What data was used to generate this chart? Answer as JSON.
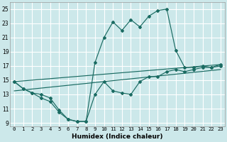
{
  "bg_color": "#cce8ea",
  "grid_color": "#ffffff",
  "line_color": "#1a6b62",
  "xlabel": "Humidex (Indice chaleur)",
  "ylim": [
    8.5,
    26
  ],
  "xlim": [
    -0.5,
    23.5
  ],
  "yticks": [
    9,
    11,
    13,
    15,
    17,
    19,
    21,
    23,
    25
  ],
  "xticks": [
    0,
    1,
    2,
    3,
    4,
    5,
    6,
    7,
    8,
    9,
    10,
    11,
    12,
    13,
    14,
    15,
    16,
    17,
    18,
    19,
    20,
    21,
    22,
    23
  ],
  "series_peak_x": [
    0,
    1,
    2,
    3,
    4,
    5,
    6,
    7,
    8,
    9,
    10,
    11,
    12,
    13,
    14,
    15,
    16,
    17,
    18,
    19,
    20,
    21,
    22,
    23
  ],
  "series_peak_y": [
    14.8,
    13.8,
    13.2,
    13.0,
    12.5,
    10.8,
    9.5,
    9.2,
    9.2,
    17.5,
    21.0,
    23.2,
    22.0,
    23.5,
    22.5,
    24.0,
    24.8,
    25.0,
    19.2,
    16.8,
    16.8,
    17.0,
    16.8,
    17.2
  ],
  "series_low_x": [
    0,
    1,
    2,
    3,
    4,
    5,
    6,
    7,
    8,
    9,
    10,
    11,
    12,
    13,
    14,
    15,
    16,
    17,
    18,
    19,
    20,
    21,
    22,
    23
  ],
  "series_low_y": [
    14.8,
    13.8,
    13.2,
    12.5,
    12.0,
    10.5,
    9.5,
    9.2,
    9.2,
    13.0,
    14.8,
    13.5,
    13.2,
    13.0,
    14.8,
    15.5,
    15.5,
    16.2,
    16.5,
    16.2,
    16.5,
    16.8,
    16.8,
    17.0
  ],
  "trend1_x": [
    0,
    23
  ],
  "trend1_y": [
    13.5,
    16.5
  ],
  "trend2_x": [
    0,
    23
  ],
  "trend2_y": [
    14.8,
    17.2
  ]
}
